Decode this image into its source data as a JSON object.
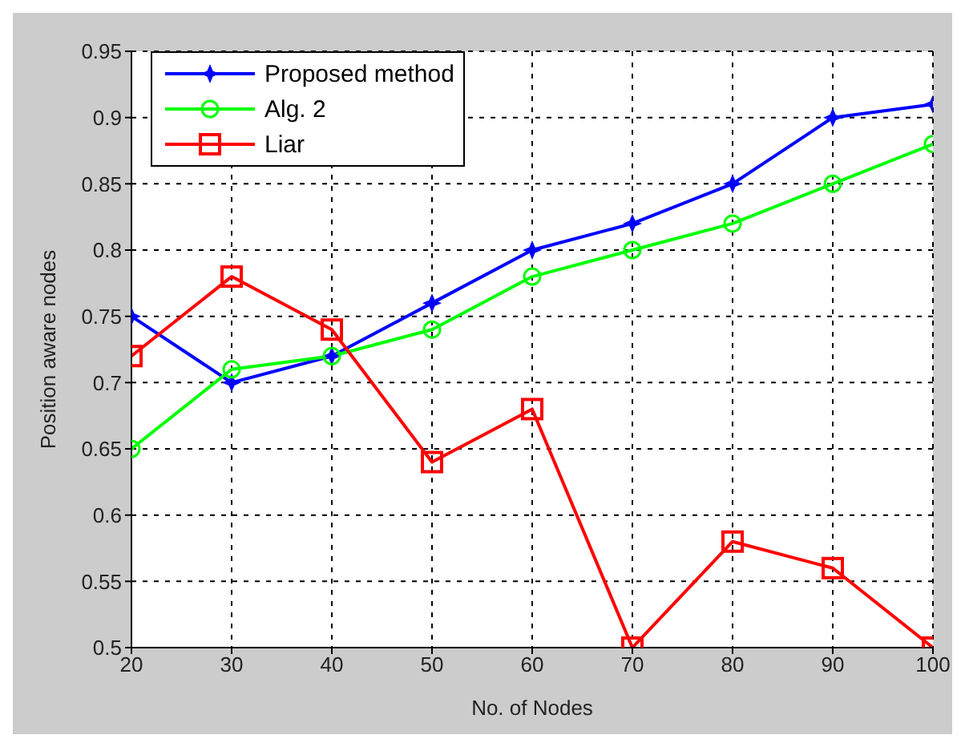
{
  "chart_data": {
    "type": "line",
    "xlabel": "No. of Nodes",
    "ylabel": "Position aware nodes",
    "x": [
      20,
      30,
      40,
      50,
      60,
      70,
      80,
      90,
      100
    ],
    "series": [
      {
        "name": "Proposed method",
        "color": "#0000ff",
        "marker": "star",
        "values": [
          0.75,
          0.7,
          0.72,
          0.76,
          0.8,
          0.82,
          0.85,
          0.9,
          0.91
        ]
      },
      {
        "name": "Alg. 2",
        "color": "#00ff00",
        "marker": "circle",
        "values": [
          0.65,
          0.71,
          0.72,
          0.74,
          0.78,
          0.8,
          0.82,
          0.85,
          0.88
        ]
      },
      {
        "name": "Liar",
        "color": "#ff0000",
        "marker": "square",
        "values": [
          0.72,
          0.78,
          0.74,
          0.64,
          0.68,
          0.5,
          0.58,
          0.56,
          0.5
        ]
      }
    ],
    "xlim": [
      20,
      100
    ],
    "xticks": [
      20,
      30,
      40,
      50,
      60,
      70,
      80,
      90,
      100
    ],
    "ylim": [
      0.5,
      0.95
    ],
    "yticks": [
      0.5,
      0.55,
      0.6,
      0.65,
      0.7,
      0.75,
      0.8,
      0.85,
      0.9,
      0.95
    ],
    "grid": true,
    "legend": "top left",
    "line_style": "solid"
  }
}
